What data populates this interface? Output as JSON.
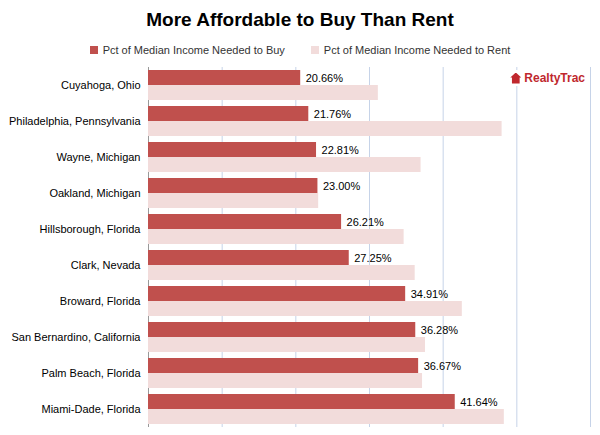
{
  "chart_data": {
    "type": "bar",
    "title": "More Affordable to Buy Than Rent",
    "annotations": [
      "RealtyTrac"
    ],
    "orientation": "horizontal",
    "categories": [
      "Cuyahoga, Ohio",
      "Philadelphia, Pennsylvania",
      "Wayne, Michigan",
      "Oakland, Michigan",
      "Hillsborough, Florida",
      "Clark, Nevada",
      "Broward, Florida",
      "San Bernardino, California",
      "Palm Beach, Florida",
      "Miami-Dade, Florida"
    ],
    "series": [
      {
        "name": "Pct of Median Income Needed to Buy",
        "color": "#c0504d",
        "data_labels": true,
        "values": [
          20.66,
          21.76,
          22.81,
          23.0,
          26.21,
          27.25,
          34.91,
          36.28,
          36.67,
          41.64
        ],
        "value_labels": [
          "20.66%",
          "21.76%",
          "22.81%",
          "23.00%",
          "26.21%",
          "27.25%",
          "34.91%",
          "36.28%",
          "36.67%",
          "41.64%"
        ]
      },
      {
        "name": "Pct of Median Income Needed to Rent",
        "color": "#f2dcdb",
        "values": [
          31.2,
          48.0,
          37.0,
          23.1,
          34.7,
          36.2,
          42.6,
          37.6,
          37.2,
          48.3
        ]
      }
    ],
    "xlim": [
      0,
      60
    ],
    "xticks": [
      0,
      10,
      20,
      30,
      40,
      50,
      60
    ],
    "grid": true,
    "tick_labels": "y",
    "legend": "top"
  }
}
